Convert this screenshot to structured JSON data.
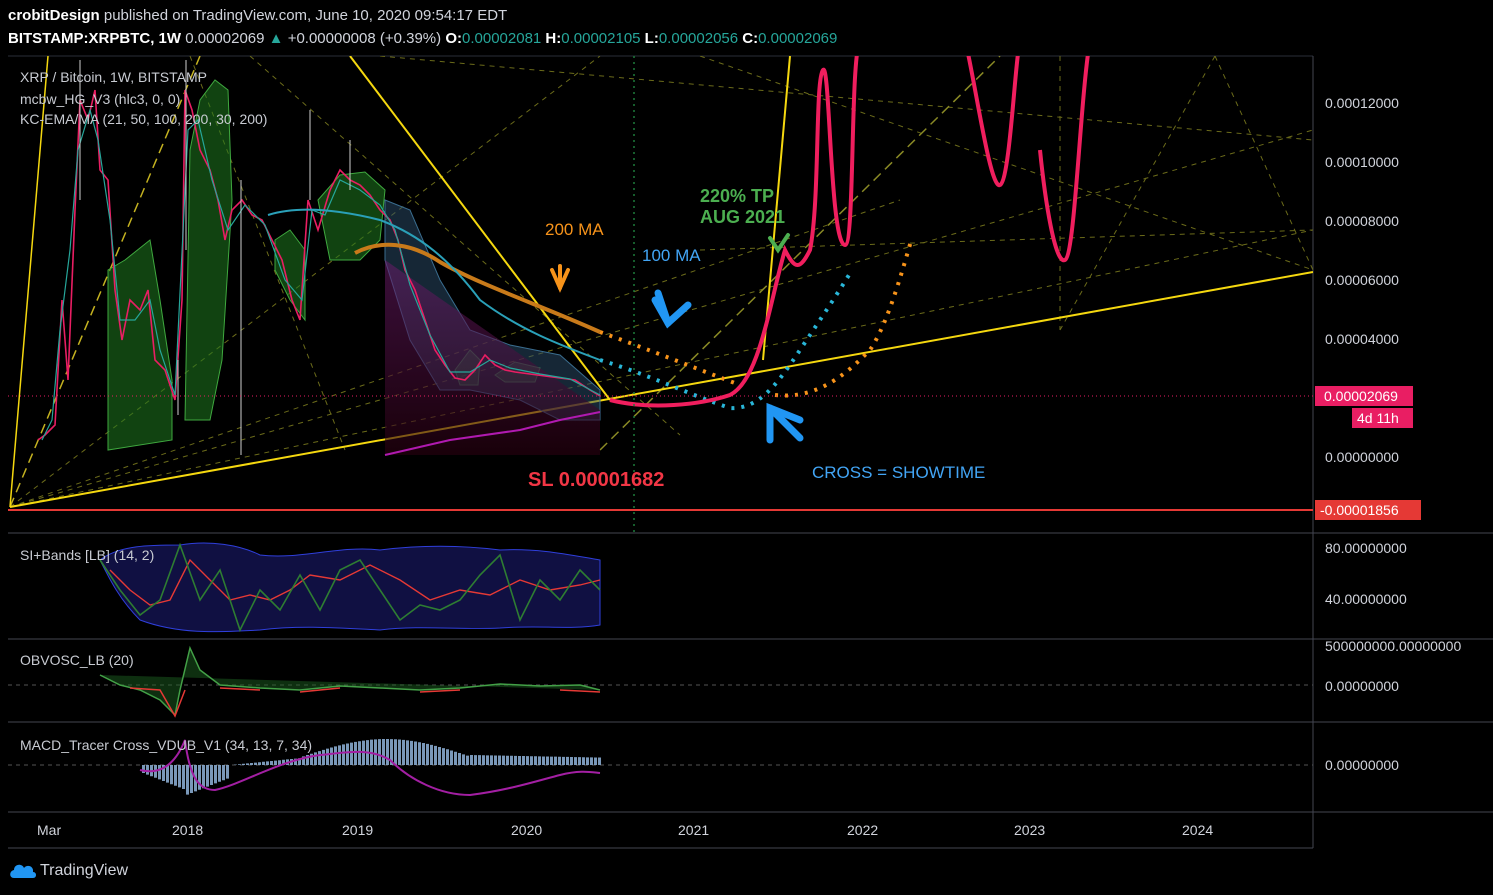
{
  "header": {
    "author": "crobitDesign",
    "published": "published on TradingView.com, June 10, 2020 09:54:17 EDT",
    "symbol": "BITSTAMP:XRPBTC, 1W",
    "last": "0.00002069",
    "arrow": "▲",
    "change": "+0.00000008 (+0.39%)",
    "o_label": "O:",
    "o": "0.00002081",
    "h_label": "H:",
    "h": "0.00002105",
    "l_label": "L:",
    "l": "0.00002056",
    "c_label": "C:",
    "c": "0.00002069"
  },
  "panes": {
    "main_title": "XRP / Bitcoin, 1W, BITSTAMP",
    "indicator1": "mcbw_HG_V3 (hlc3, 0, 0)",
    "indicator2": "KC-EMA/MA (21, 50, 100, 200, 30, 200)",
    "si_title": "SI+Bands [LB] (14, 2)",
    "obv_title": "OBVOSC_LB (20)",
    "macd_title": "MACD_Tracer Cross_VDUB_V1 (34, 13, 7, 34)"
  },
  "annotations": {
    "ma200": "200 MA",
    "ma100": "100 MA",
    "tp1": "220% TP",
    "tp2": "AUG 2021",
    "sl": "SL 0.00001682",
    "cross": "CROSS = SHOWTIME"
  },
  "badges": {
    "price": "0.00002069",
    "countdown": "4d 11h",
    "sl_price": "-0.00001856"
  },
  "chart_data": {
    "type": "line",
    "title": "XRP / Bitcoin, 1W, BITSTAMP",
    "x_ticks": [
      "Mar",
      "2018",
      "2019",
      "2020",
      "2021",
      "2022",
      "2023",
      "2024"
    ],
    "y_ticks": [
      "0.00012000",
      "0.00010000",
      "0.00008000",
      "0.00006000",
      "0.00004000",
      "0.00000000"
    ],
    "si_ticks": [
      "80.00000000",
      "40.00000000"
    ],
    "obv_ticks": [
      "500000000.00000000",
      "0.00000000"
    ],
    "macd_ticks": [
      "0.00000000"
    ],
    "ylim": [
      -1.8e-05,
      0.000135
    ],
    "series": [
      {
        "name": "XRPBTC",
        "color": "#d1d4dc",
        "x": [
          2017.1,
          2017.3,
          2017.5,
          2017.7,
          2017.9,
          2018.0,
          2018.2,
          2018.4,
          2018.6,
          2018.8,
          2019.0,
          2019.2,
          2019.4,
          2019.6,
          2019.8,
          2020.0,
          2020.2,
          2020.44
        ],
        "y": [
          1e-05,
          1.2e-05,
          6e-05,
          0.00012,
          5.5e-05,
          0.00012,
          8e-05,
          7.5e-05,
          6e-05,
          5e-05,
          9.2e-05,
          8e-05,
          4.5e-05,
          2.8e-05,
          3.2e-05,
          2.8e-05,
          2.7e-05,
          2.069e-05
        ]
      }
    ],
    "colors": {
      "accent": "#e91e63",
      "trend": "#f5d80f",
      "ma200": "#f7931a",
      "ma100": "#29b6d8",
      "tp_text": "#4caf50",
      "sl_text": "#f23645",
      "cross_text": "#2196f3"
    }
  }
}
